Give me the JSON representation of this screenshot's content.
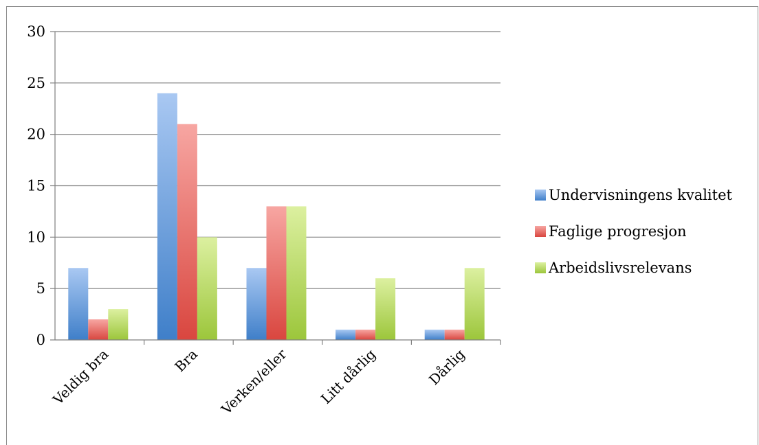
{
  "chart_data": {
    "type": "bar",
    "title": "",
    "xlabel": "",
    "ylabel": "",
    "categories": [
      "Veldig bra",
      "Bra",
      "Verken/eller",
      "Litt dårlig",
      "Dårlig"
    ],
    "ylim": [
      0,
      30
    ],
    "yticks": [
      0,
      5,
      10,
      15,
      20,
      25,
      30
    ],
    "grid": true,
    "legend_position": "right",
    "series": [
      {
        "name": "Undervisningens kvalitet",
        "values": [
          7,
          24,
          7,
          1,
          1
        ],
        "color": "#5b9bd5",
        "color_light": "#a9c8f2",
        "color_dark": "#3f7fc9"
      },
      {
        "name": "Faglige progresjon",
        "values": [
          2,
          21,
          13,
          1,
          1
        ],
        "color": "#e8716c",
        "color_light": "#f7a6a2",
        "color_dark": "#d9463f"
      },
      {
        "name": "Arbeidslivsrelevans",
        "values": [
          3,
          10,
          13,
          6,
          7
        ],
        "color": "#b8d95f",
        "color_light": "#dcf0a0",
        "color_dark": "#9cc63b"
      }
    ]
  }
}
